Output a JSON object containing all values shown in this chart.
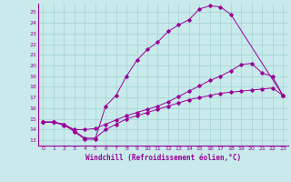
{
  "xlabel": "Windchill (Refroidissement éolien,°C)",
  "bg_color": "#c8eaea",
  "grid_color": "#a8d8d8",
  "line_color": "#990099",
  "xlim": [
    -0.5,
    23.5
  ],
  "ylim": [
    12.5,
    25.8
  ],
  "xticks": [
    0,
    1,
    2,
    3,
    4,
    5,
    6,
    7,
    8,
    9,
    10,
    11,
    12,
    13,
    14,
    15,
    16,
    17,
    18,
    19,
    20,
    21,
    22,
    23
  ],
  "yticks": [
    13,
    14,
    15,
    16,
    17,
    18,
    19,
    20,
    21,
    22,
    23,
    24,
    25
  ],
  "line1_x": [
    0,
    1,
    2,
    3,
    4,
    5,
    6,
    7,
    8,
    9,
    10,
    11,
    12,
    13,
    14,
    15,
    16,
    17,
    18,
    23
  ],
  "line1_y": [
    14.7,
    14.7,
    14.5,
    13.8,
    13.1,
    13.1,
    16.2,
    17.2,
    19.0,
    20.5,
    21.5,
    22.2,
    23.2,
    23.8,
    24.3,
    25.3,
    25.6,
    25.5,
    24.8,
    17.2
  ],
  "line2_x": [
    0,
    1,
    2,
    3,
    4,
    5,
    6,
    7,
    8,
    9,
    10,
    11,
    12,
    13,
    14,
    15,
    16,
    17,
    18,
    19,
    20,
    21,
    22,
    23
  ],
  "line2_y": [
    14.7,
    14.7,
    14.5,
    14.0,
    14.0,
    14.1,
    14.5,
    14.9,
    15.3,
    15.6,
    15.9,
    16.2,
    16.6,
    17.1,
    17.6,
    18.1,
    18.6,
    19.0,
    19.5,
    20.1,
    20.2,
    19.3,
    19.0,
    17.2
  ],
  "line3_x": [
    0,
    1,
    2,
    3,
    4,
    5,
    6,
    7,
    8,
    9,
    10,
    11,
    12,
    13,
    14,
    15,
    16,
    17,
    18,
    19,
    20,
    21,
    22,
    23
  ],
  "line3_y": [
    14.7,
    14.7,
    14.4,
    13.9,
    13.2,
    13.2,
    14.0,
    14.5,
    15.0,
    15.3,
    15.6,
    15.9,
    16.2,
    16.5,
    16.8,
    17.0,
    17.2,
    17.4,
    17.5,
    17.6,
    17.7,
    17.8,
    17.9,
    17.2
  ],
  "xlabel_fontsize": 5.5,
  "tick_fontsize": 4.5
}
